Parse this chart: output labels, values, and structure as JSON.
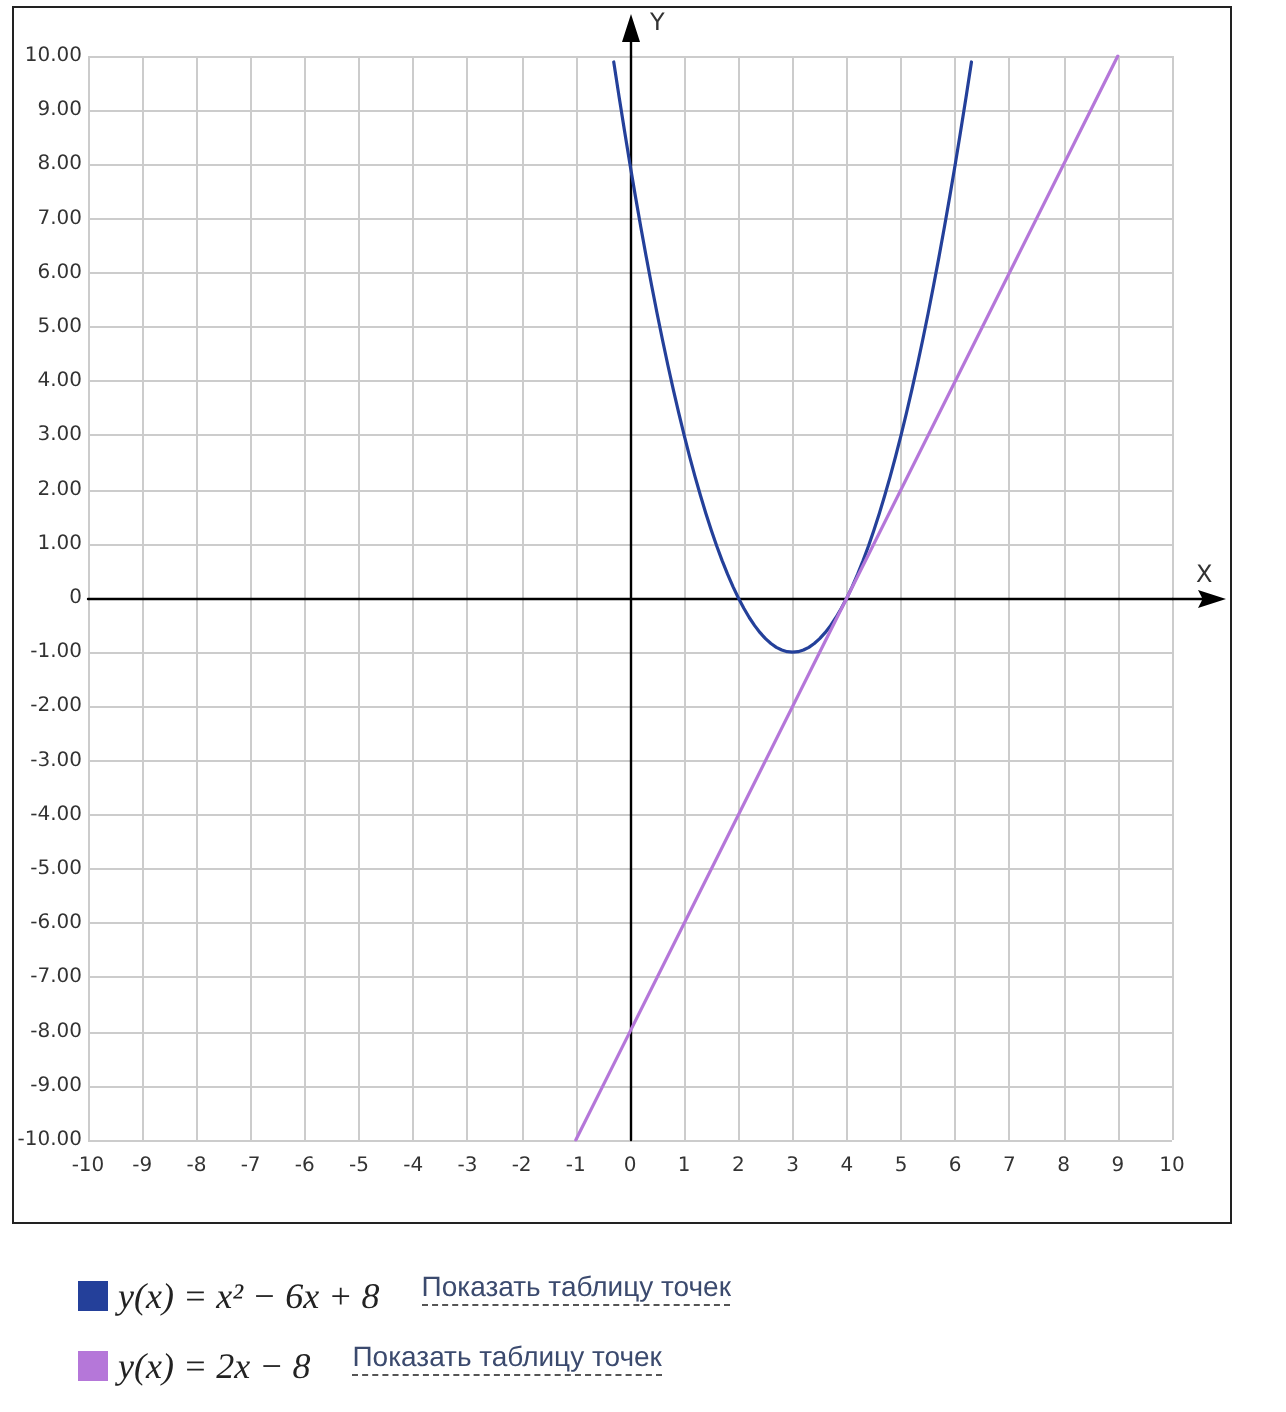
{
  "chart_data": {
    "type": "line",
    "xlabel": "X",
    "ylabel": "Y",
    "series": [
      {
        "name": "y(x) = x² − 6x + 8",
        "color": "#24409a",
        "x": [
          -0.3,
          -0.2,
          -0.1,
          0,
          0.1,
          0.2,
          0.3,
          0.4,
          0.5,
          0.6,
          0.7,
          0.8,
          0.9,
          1,
          1.1,
          1.2,
          1.3,
          1.4,
          1.5,
          1.6,
          1.7,
          1.8,
          1.9,
          2,
          2.1,
          2.2,
          2.3,
          2.4,
          2.5,
          2.6,
          2.7,
          2.8,
          2.9,
          3,
          3.1,
          3.2,
          3.3,
          3.4,
          3.5,
          3.6,
          3.7,
          3.8,
          3.9,
          4,
          4.1,
          4.2,
          4.3,
          4.4,
          4.5,
          4.6,
          4.7,
          4.8,
          4.9,
          5,
          5.1,
          5.2,
          5.3,
          5.4,
          5.5,
          5.6,
          5.7,
          5.8,
          5.9,
          6,
          6.1,
          6.2,
          6.3
        ],
        "values": [
          9.89,
          9.24,
          8.61,
          8,
          7.41,
          6.84,
          6.29,
          5.76,
          5.25,
          4.76,
          4.29,
          3.84,
          3.41,
          3,
          2.61,
          2.24,
          1.89,
          1.56,
          1.25,
          0.96,
          0.69,
          0.44,
          0.21,
          0,
          -0.19,
          -0.36,
          -0.51,
          -0.64,
          -0.75,
          -0.84,
          -0.91,
          -0.96,
          -0.99,
          -1,
          -0.99,
          -0.96,
          -0.91,
          -0.84,
          -0.75,
          -0.64,
          -0.51,
          -0.36,
          -0.19,
          0,
          0.21,
          0.44,
          0.69,
          0.96,
          1.25,
          1.56,
          1.89,
          2.24,
          2.61,
          3,
          3.41,
          3.84,
          4.29,
          4.76,
          5.25,
          5.76,
          6.29,
          6.84,
          7.41,
          8,
          8.61,
          9.24,
          9.89
        ]
      },
      {
        "name": "y(x) = 2x − 8",
        "color": "#b577d9",
        "x": [
          -1,
          0,
          4,
          9
        ],
        "values": [
          -10,
          -8,
          0,
          10
        ]
      }
    ],
    "xlim": [
      -10,
      10
    ],
    "xticks": [
      -10,
      -9,
      -8,
      -7,
      -6,
      -5,
      -4,
      -3,
      -2,
      -1,
      0,
      1,
      2,
      3,
      4,
      5,
      6,
      7,
      8,
      9,
      10
    ],
    "ylim": [
      -10,
      10
    ],
    "yticks": [
      {
        "value": 10,
        "label": "10.00"
      },
      {
        "value": 9,
        "label": "9.00"
      },
      {
        "value": 8,
        "label": "8.00"
      },
      {
        "value": 7,
        "label": "7.00"
      },
      {
        "value": 6,
        "label": "6.00"
      },
      {
        "value": 5,
        "label": "5.00"
      },
      {
        "value": 4,
        "label": "4.00"
      },
      {
        "value": 3,
        "label": "3.00"
      },
      {
        "value": 2,
        "label": "2.00"
      },
      {
        "value": 1,
        "label": "1.00"
      },
      0,
      {
        "value": -1,
        "label": "-1.00"
      },
      {
        "value": -2,
        "label": "-2.00"
      },
      {
        "value": -3,
        "label": "-3.00"
      },
      {
        "value": -4,
        "label": "-4.00"
      },
      {
        "value": -5,
        "label": "-5.00"
      },
      {
        "value": -6,
        "label": "-6.00"
      },
      {
        "value": -7,
        "label": "-7.00"
      },
      {
        "value": -8,
        "label": "-8.00"
      },
      {
        "value": -9,
        "label": "-9.00"
      },
      {
        "value": -10,
        "label": "-10.00"
      }
    ],
    "annotations": [
      "Показать таблицу точек",
      "Показать таблицу точек"
    ],
    "grid": true,
    "legend": "bottom",
    "marker": "none",
    "line_style": "solid"
  }
}
